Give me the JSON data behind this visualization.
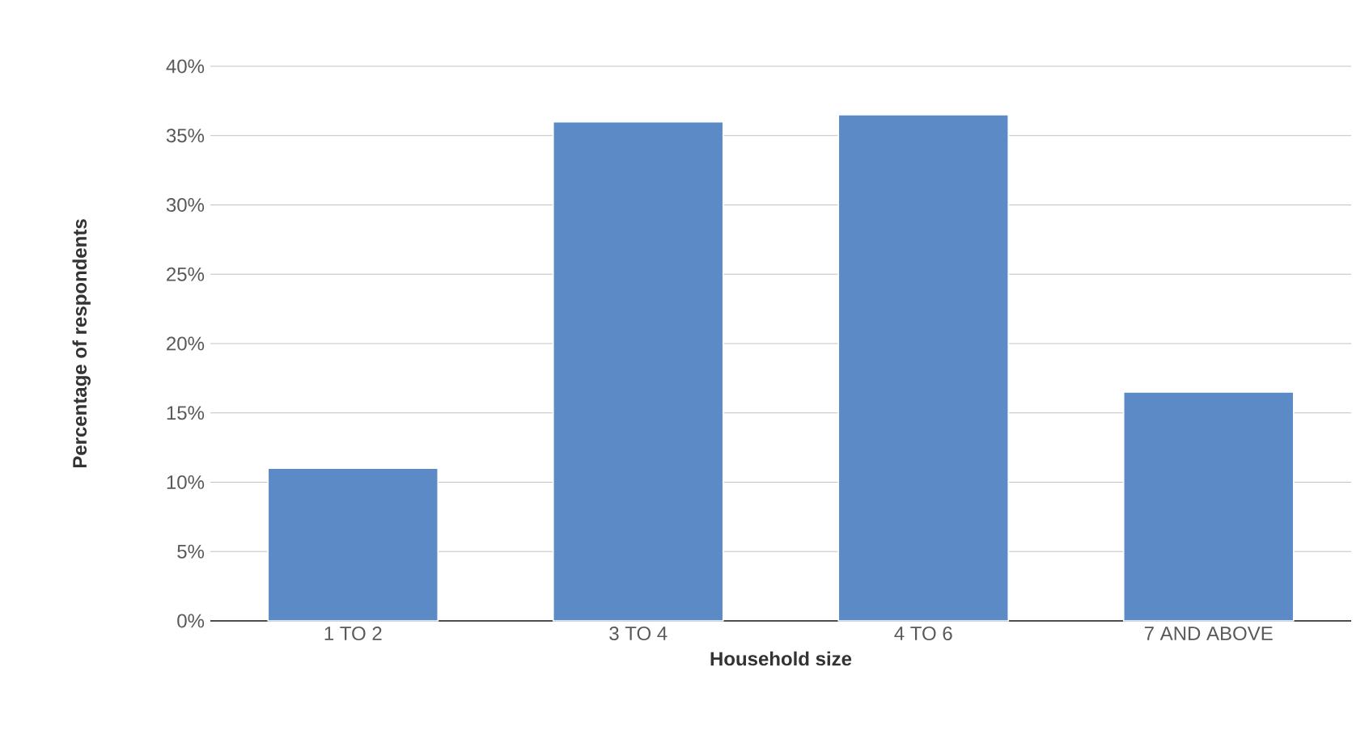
{
  "chart_data": {
    "type": "bar",
    "xlabel": "Household size",
    "ylabel": "Percentage of respondents",
    "categories": [
      "1 TO 2",
      "3 TO 4",
      "4 TO 6",
      "7 AND ABOVE"
    ],
    "values": [
      11,
      36,
      36.5,
      16.5
    ],
    "color": "#5b8ac6",
    "ylim": [
      0,
      40
    ],
    "yticks": [
      {
        "value": 0,
        "label": "0%"
      },
      {
        "value": 5,
        "label": "5%"
      },
      {
        "value": 10,
        "label": "10%"
      },
      {
        "value": 15,
        "label": "15%"
      },
      {
        "value": 20,
        "label": "20%"
      },
      {
        "value": 25,
        "label": "25%"
      },
      {
        "value": 30,
        "label": "30%"
      },
      {
        "value": 35,
        "label": "35%"
      },
      {
        "value": 40,
        "label": "40%"
      }
    ],
    "grid": "y"
  }
}
